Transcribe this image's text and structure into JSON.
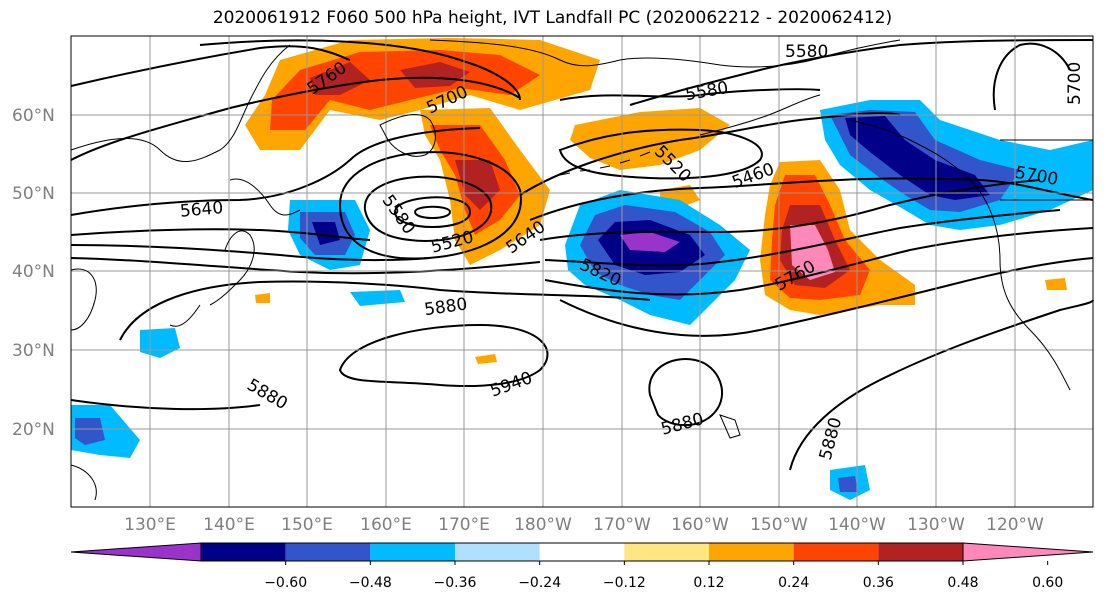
{
  "title": "2020061912 F060 500 hPa height, IVT Landfall PC (2020062212 - 2020062412)",
  "lat_labels": [
    "60°N",
    "50°N",
    "40°N",
    "30°N",
    "20°N"
  ],
  "lon_labels": [
    "130°E",
    "140°E",
    "150°E",
    "160°E",
    "170°E",
    "180°W",
    "170°W",
    "160°W",
    "150°W",
    "140°W",
    "130°W",
    "120°W"
  ],
  "contour_labels": [
    "5760",
    "5700",
    "5580",
    "5580",
    "5640",
    "5580",
    "5520",
    "5640",
    "5520",
    "5460",
    "5700",
    "5700",
    "5820",
    "5760",
    "5880",
    "5940",
    "5880",
    "5880",
    "5880"
  ],
  "colorbar": {
    "colors": [
      "#9933cc",
      "#000088",
      "#3355cc",
      "#00bbff",
      "#b0e0ff",
      "#ffffff",
      "#ffe680",
      "#ffa500",
      "#ff4400",
      "#b22222",
      "#ff88bb"
    ],
    "ticks": [
      "−0.60",
      "−0.48",
      "−0.36",
      "−0.24",
      "−0.12",
      "0.12",
      "0.24",
      "0.36",
      "0.48",
      "0.60"
    ]
  },
  "colors": {
    "ocean": "#ffffff",
    "contour": "#000000",
    "grid": "#999999",
    "axis_labels": "#7f7f7f"
  }
}
